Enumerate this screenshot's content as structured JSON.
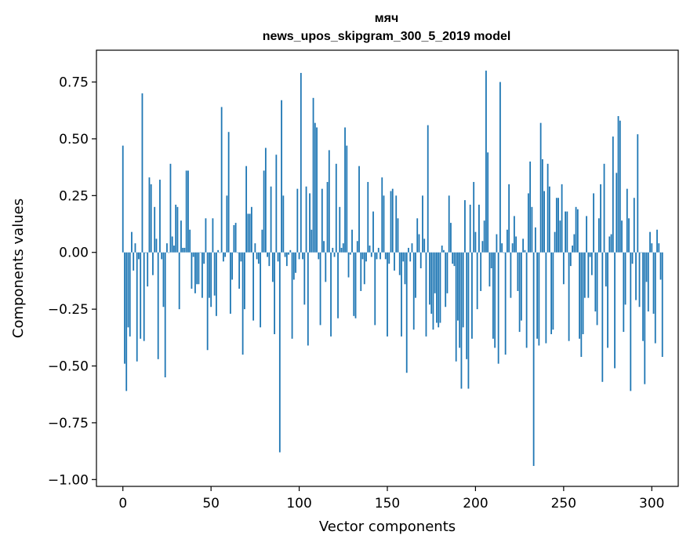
{
  "chart_data": {
    "type": "bar",
    "title": "мяч",
    "subtitle": "news_upos_skipgram_300_5_2019 model",
    "xlabel": "Vector components",
    "ylabel": "Components values",
    "xlim": [
      -15,
      315
    ],
    "ylim": [
      -1.03,
      0.89
    ],
    "xticks": [
      0,
      50,
      100,
      150,
      200,
      250,
      300
    ],
    "yticks": [
      -1.0,
      -0.75,
      -0.5,
      -0.25,
      0.0,
      0.25,
      0.5,
      0.75
    ],
    "ytick_labels": [
      "−1.00",
      "−0.75",
      "−0.50",
      "−0.25",
      "0.00",
      "0.25",
      "0.50",
      "0.75"
    ],
    "xtick_labels": [
      "0",
      "50",
      "100",
      "150",
      "200",
      "250",
      "300"
    ],
    "bar_color": "#1f77b4",
    "values": [
      0.47,
      -0.49,
      -0.61,
      -0.33,
      -0.37,
      0.09,
      -0.08,
      0.04,
      -0.48,
      -0.03,
      -0.38,
      0.7,
      -0.39,
      0.0,
      -0.15,
      0.33,
      0.3,
      -0.1,
      0.2,
      0.06,
      -0.47,
      0.32,
      -0.03,
      -0.24,
      -0.55,
      0.04,
      0.0,
      0.39,
      0.07,
      0.03,
      0.21,
      0.2,
      -0.25,
      0.14,
      0.02,
      0.02,
      0.36,
      0.36,
      0.1,
      -0.16,
      -0.02,
      -0.18,
      -0.14,
      -0.14,
      0.0,
      -0.2,
      -0.05,
      0.15,
      -0.43,
      -0.2,
      -0.24,
      0.15,
      -0.19,
      -0.28,
      0.01,
      0.0,
      0.64,
      -0.04,
      -0.02,
      0.25,
      0.53,
      -0.27,
      -0.12,
      0.12,
      0.13,
      0.0,
      -0.16,
      -0.04,
      -0.45,
      -0.25,
      0.38,
      0.17,
      0.17,
      0.2,
      -0.3,
      0.04,
      -0.03,
      -0.05,
      -0.33,
      0.1,
      0.36,
      0.46,
      -0.02,
      -0.06,
      0.29,
      -0.13,
      -0.36,
      0.43,
      -0.04,
      -0.88,
      0.67,
      0.25,
      -0.02,
      -0.06,
      -0.01,
      0.01,
      -0.38,
      -0.12,
      -0.09,
      0.28,
      -0.03,
      0.79,
      -0.03,
      -0.23,
      0.29,
      -0.41,
      0.26,
      0.1,
      0.68,
      0.57,
      0.55,
      -0.03,
      -0.32,
      0.28,
      0.05,
      -0.13,
      0.31,
      0.45,
      -0.37,
      0.02,
      -0.02,
      0.39,
      -0.29,
      0.2,
      0.02,
      0.04,
      0.55,
      0.47,
      -0.11,
      -0.01,
      0.1,
      -0.28,
      -0.29,
      0.05,
      0.38,
      -0.17,
      -0.03,
      -0.14,
      -0.04,
      0.31,
      0.03,
      -0.02,
      0.18,
      -0.32,
      -0.03,
      0.02,
      -0.03,
      0.33,
      0.25,
      -0.03,
      -0.37,
      -0.05,
      0.27,
      0.28,
      -0.08,
      0.25,
      0.15,
      -0.1,
      -0.37,
      -0.04,
      -0.14,
      -0.53,
      0.02,
      -0.04,
      0.04,
      -0.34,
      -0.2,
      0.15,
      0.08,
      -0.07,
      0.25,
      0.06,
      -0.37,
      0.56,
      -0.23,
      -0.27,
      -0.34,
      -0.18,
      -0.31,
      -0.33,
      -0.31,
      0.03,
      0.01,
      -0.24,
      -0.18,
      0.25,
      0.13,
      -0.05,
      -0.06,
      -0.48,
      -0.3,
      -0.42,
      -0.6,
      -0.33,
      0.23,
      -0.47,
      -0.6,
      0.21,
      -0.38,
      0.31,
      0.09,
      -0.25,
      0.21,
      -0.17,
      0.05,
      0.14,
      0.8,
      0.44,
      -0.15,
      -0.07,
      -0.38,
      -0.42,
      0.08,
      -0.49,
      0.75,
      0.04,
      0.0,
      -0.45,
      0.1,
      0.3,
      -0.2,
      0.04,
      0.16,
      0.07,
      -0.17,
      -0.35,
      -0.3,
      0.06,
      0.01,
      -0.42,
      0.26,
      0.4,
      0.2,
      -0.94,
      0.11,
      -0.38,
      -0.41,
      0.57,
      0.41,
      0.27,
      -0.4,
      0.39,
      0.29,
      -0.36,
      -0.34,
      0.09,
      0.24,
      0.24,
      0.14,
      0.3,
      -0.14,
      0.18,
      0.18,
      -0.39,
      -0.06,
      0.03,
      0.08,
      0.2,
      0.19,
      -0.38,
      -0.46,
      -0.36,
      -0.2,
      0.16,
      -0.2,
      -0.02,
      -0.1,
      0.26,
      -0.26,
      -0.32,
      0.15,
      0.3,
      -0.57,
      0.39,
      -0.15,
      -0.42,
      0.07,
      0.08,
      0.51,
      -0.51,
      0.35,
      0.6,
      0.58,
      0.14,
      -0.35,
      -0.23,
      0.28,
      0.15,
      -0.61,
      -0.05,
      0.24,
      -0.21,
      0.52,
      -0.24,
      0.0,
      -0.39,
      -0.58,
      -0.13,
      -0.26,
      0.09,
      0.04,
      -0.27,
      -0.4,
      0.1,
      0.04,
      -0.12,
      -0.46
    ]
  }
}
